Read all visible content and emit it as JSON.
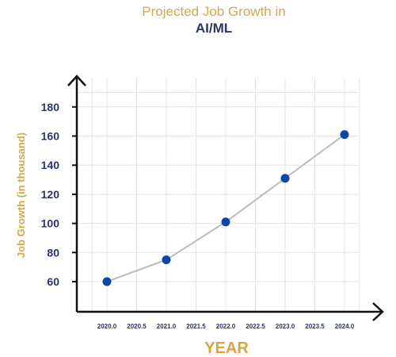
{
  "chart_data": {
    "type": "line",
    "title": "Projected Job Growth in",
    "subtitle": "AI/ML",
    "xlabel": "YEAR",
    "ylabel": "Job Growth (in thousand)",
    "x_ticks": [
      "2020.0",
      "2020.5",
      "2021.0",
      "2021.5",
      "2022.0",
      "2022.5",
      "2023.0",
      "2023.5",
      "2024.0"
    ],
    "y_ticks": [
      "60",
      "80",
      "100",
      "120",
      "140",
      "160",
      "180"
    ],
    "xlim": [
      2019.75,
      2024.25
    ],
    "ylim": [
      40,
      190
    ],
    "grid": true,
    "series": [
      {
        "x": [
          2020,
          2021,
          2022,
          2023,
          2024
        ],
        "values": [
          60,
          75,
          101,
          131,
          161
        ]
      }
    ]
  },
  "colors": {
    "line": "#bcbcbc",
    "marker": "#0a47a9",
    "grid": "#e4e4e4",
    "axis": "#111111",
    "title": "#d4a84a",
    "subtitle": "#2b3566",
    "ticks": "#2b3566",
    "xlabel": "#d9a441",
    "ylabel": "#d4a84a"
  }
}
